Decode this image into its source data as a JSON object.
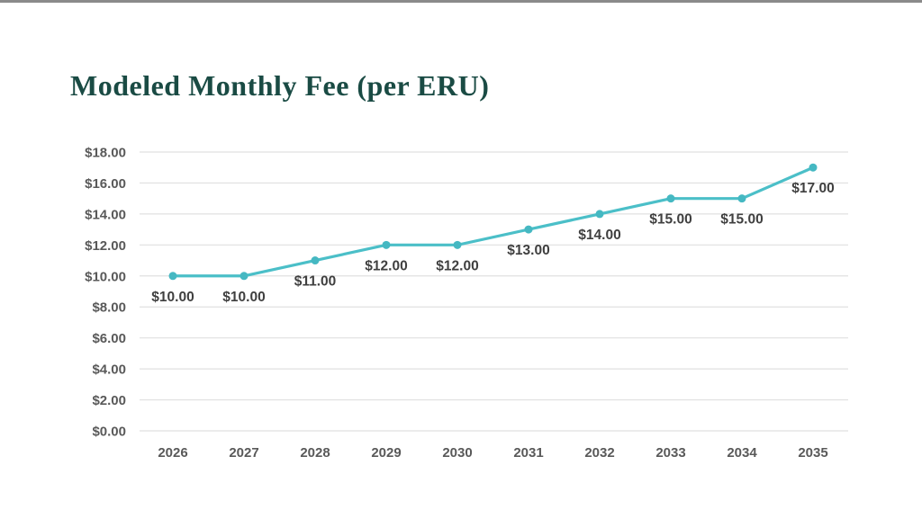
{
  "title": "Modeled Monthly Fee (per ERU)",
  "colors": {
    "top_bar": "#8a8a8a",
    "title": "#1a4b44",
    "line": "#4bbfc8",
    "marker": "#45b8c2",
    "gridline": "#e0e0e0",
    "axis_label": "#595959",
    "value_label": "#3f3f3f",
    "background": "#ffffff"
  },
  "chart_data": {
    "type": "line",
    "title": "Modeled Monthly Fee (per ERU)",
    "xlabel": "",
    "ylabel": "",
    "categories": [
      "2026",
      "2027",
      "2028",
      "2029",
      "2030",
      "2031",
      "2032",
      "2033",
      "2034",
      "2035"
    ],
    "series": [
      {
        "name": "Modeled Monthly Fee (per ERU)",
        "values": [
          10,
          10,
          11,
          12,
          12,
          13,
          14,
          15,
          15,
          17
        ],
        "value_labels": [
          "$10.00",
          "$10.00",
          "$11.00",
          "$12.00",
          "$12.00",
          "$13.00",
          "$14.00",
          "$15.00",
          "$15.00",
          "$17.00"
        ]
      }
    ],
    "ylim": [
      0,
      18
    ],
    "y_tick_step": 2,
    "y_tick_labels": [
      "$0.00",
      "$2.00",
      "$4.00",
      "$6.00",
      "$8.00",
      "$10.00",
      "$12.00",
      "$14.00",
      "$16.00",
      "$18.00"
    ],
    "grid": true,
    "legend": "none",
    "markers": true,
    "data_labels_position": "below"
  }
}
